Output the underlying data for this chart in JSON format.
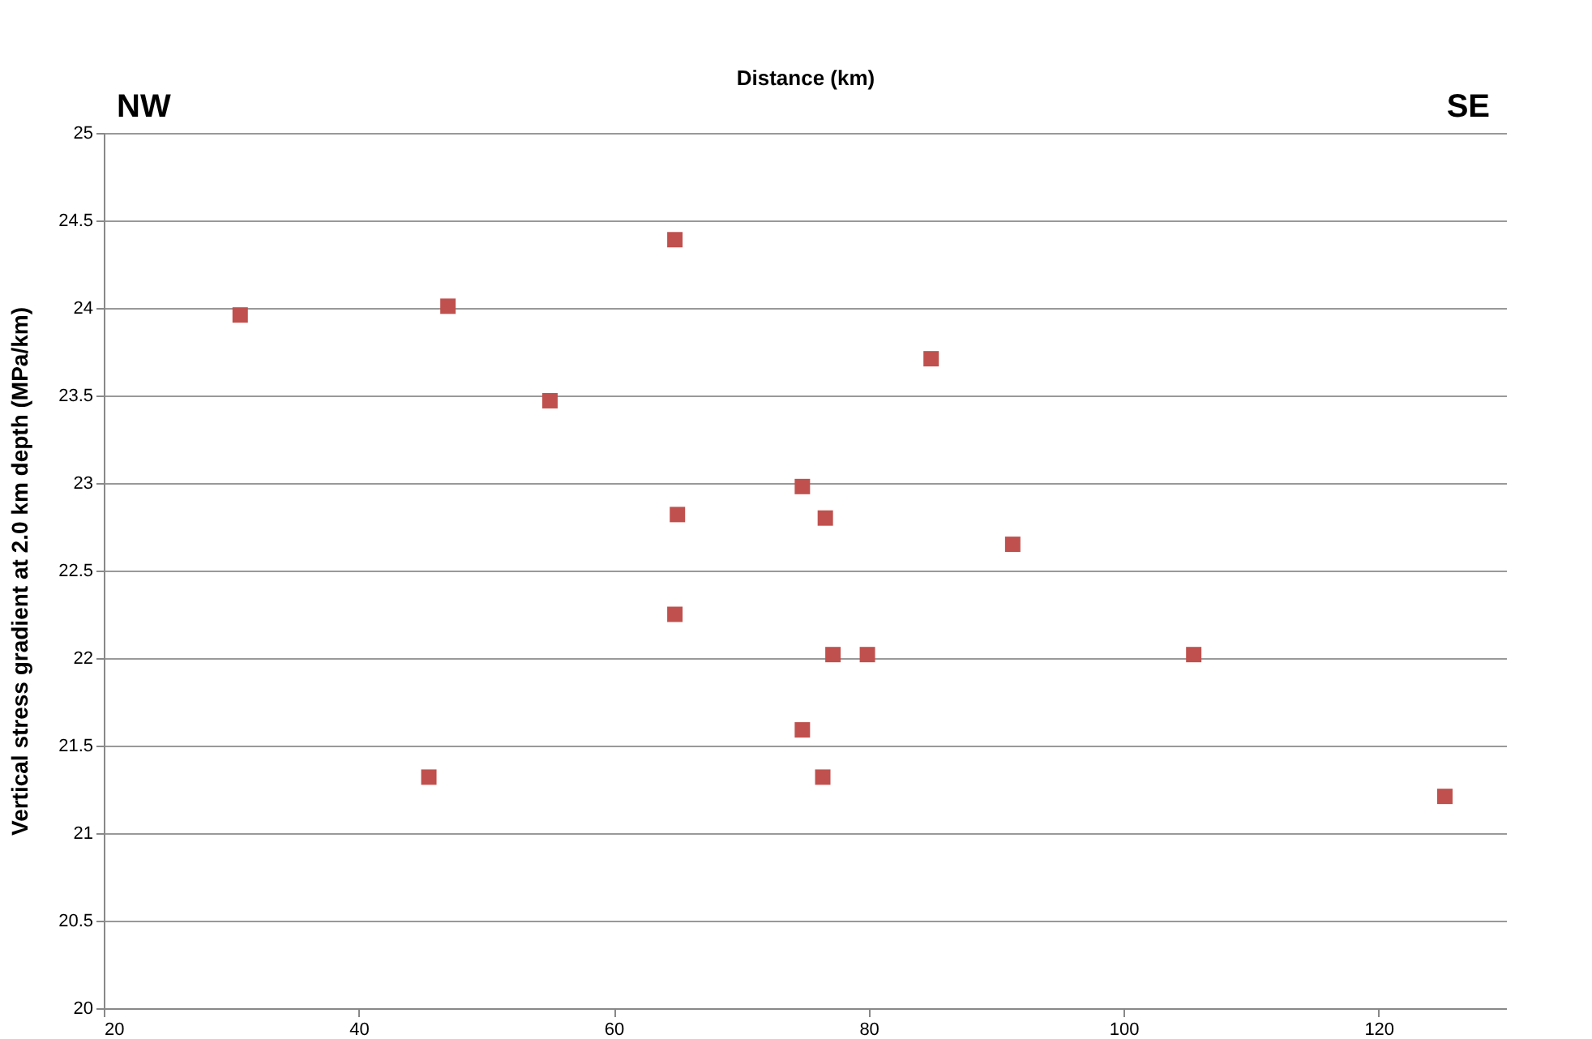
{
  "chart_data": {
    "type": "scatter",
    "xlabel": "Distance (km)",
    "ylabel": "Vertical stress gradient at 2.0 km depth (MPa/km)",
    "annotations": [
      "NW",
      "SE"
    ],
    "x": [
      30.7,
      47.0,
      55.0,
      64.8,
      65.0,
      64.8,
      45.5,
      74.8,
      76.6,
      84.9,
      77.2,
      79.9,
      74.8,
      76.4,
      91.3,
      105.5,
      125.2
    ],
    "values": [
      23.96,
      24.01,
      23.47,
      24.39,
      22.82,
      22.25,
      21.32,
      22.98,
      22.8,
      23.71,
      22.02,
      22.02,
      21.59,
      21.32,
      22.65,
      22.02,
      21.21
    ],
    "color": "#c0504d",
    "marker": "square",
    "grid": "y",
    "xlim": [
      20,
      130
    ],
    "xticks": [
      20,
      40,
      60,
      80,
      100,
      120
    ],
    "ylim": [
      20,
      25
    ],
    "yticks": [
      20,
      20.5,
      21,
      21.5,
      22,
      22.5,
      23,
      23.5,
      24,
      24.5,
      25
    ]
  }
}
